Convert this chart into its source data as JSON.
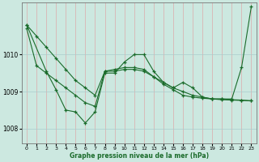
{
  "xlabel": "Graphe pression niveau de la mer (hPa)",
  "background_color": "#cce8e0",
  "grid_color": "#aacccc",
  "line_color": "#1a6b2a",
  "xlim": [
    -0.5,
    23.5
  ],
  "ylim": [
    1007.6,
    1011.4
  ],
  "yticks": [
    1008,
    1009,
    1010
  ],
  "xticks": [
    0,
    1,
    2,
    3,
    4,
    5,
    6,
    7,
    8,
    9,
    10,
    11,
    12,
    13,
    14,
    15,
    16,
    17,
    18,
    19,
    20,
    21,
    22,
    23
  ],
  "series1_x": [
    0,
    1,
    2,
    3,
    4,
    5,
    6,
    7,
    8,
    9,
    10,
    11,
    12,
    13,
    14,
    15,
    16,
    17,
    18,
    19,
    20,
    21,
    22,
    23
  ],
  "series1_y": [
    1010.7,
    1009.7,
    1009.5,
    1009.3,
    1009.1,
    1008.9,
    1008.7,
    1008.6,
    1009.55,
    1009.6,
    1009.65,
    1009.65,
    1009.6,
    1009.4,
    1009.25,
    1009.1,
    1009.0,
    1008.9,
    1008.85,
    1008.8,
    1008.8,
    1008.78,
    1008.77,
    1008.75
  ],
  "series2_x": [
    0,
    1,
    2,
    3,
    4,
    5,
    6,
    7,
    8,
    9,
    10,
    11,
    12,
    13,
    14,
    15,
    16,
    17,
    18,
    19,
    20,
    21,
    22,
    23
  ],
  "series2_y": [
    1010.8,
    1010.5,
    1010.2,
    1009.9,
    1009.6,
    1009.3,
    1009.1,
    1008.9,
    1009.55,
    1009.55,
    1009.6,
    1009.6,
    1009.55,
    1009.4,
    1009.2,
    1009.05,
    1008.9,
    1008.85,
    1008.82,
    1008.8,
    1008.78,
    1008.77,
    1008.76,
    1008.75
  ],
  "series3_x": [
    0,
    2,
    3,
    4,
    5,
    6,
    7,
    8,
    9,
    10,
    11,
    12,
    13,
    14,
    15,
    16,
    17,
    18,
    19,
    20,
    21,
    22,
    23
  ],
  "series3_y": [
    1010.8,
    1009.55,
    1009.05,
    1008.5,
    1008.45,
    1008.15,
    1008.45,
    1009.5,
    1009.5,
    1009.8,
    1010.0,
    1010.0,
    1009.55,
    1009.25,
    1009.1,
    1009.25,
    1009.1,
    1008.85,
    1008.8,
    1008.8,
    1008.8,
    1009.65,
    1011.3
  ]
}
